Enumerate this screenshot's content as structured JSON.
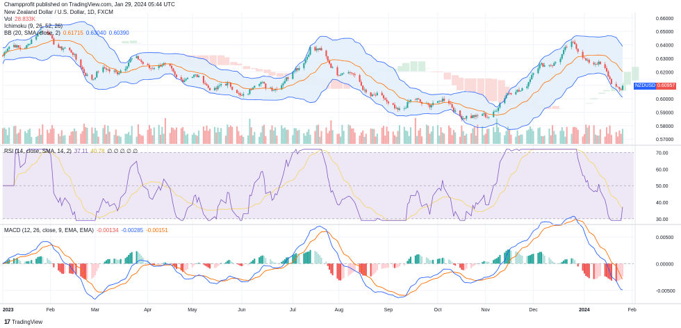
{
  "publisher": "Champprofit published on TradingView.com, Jan 29, 2024 05:44 UTC",
  "logo_text": "TradingView",
  "logo_icon": "tradingview-logo-icon",
  "colors": {
    "up": "#26a69a",
    "down": "#ef5350",
    "bb": "#2962ff",
    "bb_fill": "#e3f0fb",
    "basis": "#ff6d00",
    "ichi_up": "#d8eee0",
    "ichi_down": "#fbdada",
    "rsi": "#7e57c2",
    "rsi_ma": "#f5d76e",
    "rsi_band": "#ede7f6",
    "macd": "#2962ff",
    "signal": "#ff6d00"
  },
  "main_pane": {
    "title": "New Zealand Dollar / U.S. Dollar, 1D, FXCM",
    "vol_label": "Vol",
    "vol_value": "28.833K",
    "ichimoku_label": "Ichimoku (9, 26, 52, 26)",
    "bb_label": "BB (20, SMA, close, 2)",
    "bb_basis": "0.61715",
    "bb_upper": "0.63040",
    "bb_lower": "0.60390",
    "symbol_tag": "NZDUSD",
    "last_price": "0.60957"
  },
  "rsi_pane": {
    "label": "RSI (14, close, SMA, 14, 2)",
    "rsi_value": "37.11",
    "rsi_ma_value": "40.78",
    "extra": "∅ ∅ ∅ ∅ ∅"
  },
  "macd_pane": {
    "label": "MACD (12, 26, close, 9, EMA, EMA)",
    "hist_value": "-0.00134",
    "macd_value": "-0.00285",
    "signal_value": "-0.00151"
  },
  "chart_data": [
    {
      "type": "candlestick",
      "title": "New Zealand Dollar / U.S. Dollar, 1D, FXCM",
      "x_tick_labels": [
        "2023",
        "Feb",
        "Mar",
        "Apr",
        "May",
        "Jun",
        "Jul",
        "Aug",
        "Sep",
        "Oct",
        "Nov",
        "Dec",
        "2024",
        "Feb"
      ],
      "y_ticks": [
        "0.66000",
        "0.65000",
        "0.64000",
        "0.63000",
        "0.62000",
        "0.61000",
        "0.60000",
        "0.59000",
        "0.58000",
        "0.57000"
      ],
      "ylim": [
        0.566,
        0.664
      ],
      "monthly_close_approx": [
        {
          "x": "2023-01-02",
          "y": 0.632
        },
        {
          "x": "2023-01-31",
          "y": 0.648
        },
        {
          "x": "2023-02-28",
          "y": 0.618
        },
        {
          "x": "2023-03-31",
          "y": 0.626
        },
        {
          "x": "2023-04-28",
          "y": 0.618
        },
        {
          "x": "2023-05-31",
          "y": 0.603
        },
        {
          "x": "2023-06-30",
          "y": 0.614
        },
        {
          "x": "2023-07-14",
          "y": 0.64
        },
        {
          "x": "2023-07-31",
          "y": 0.621
        },
        {
          "x": "2023-08-31",
          "y": 0.596
        },
        {
          "x": "2023-09-29",
          "y": 0.599
        },
        {
          "x": "2023-10-26",
          "y": 0.582
        },
        {
          "x": "2023-11-30",
          "y": 0.618
        },
        {
          "x": "2023-12-27",
          "y": 0.637
        },
        {
          "x": "2024-01-26",
          "y": 0.61
        }
      ],
      "last_close": 0.60957
    },
    {
      "type": "line",
      "title": "RSI (14, close, SMA, 14, 2)",
      "y_ticks": [
        "70.00",
        "60.00",
        "50.00",
        "40.00",
        "30.00"
      ],
      "ylim": [
        27,
        74
      ],
      "bands": [
        30,
        70
      ],
      "series": [
        {
          "name": "RSI",
          "last": 37.11
        },
        {
          "name": "RSI-based MA",
          "last": 40.78
        }
      ]
    },
    {
      "type": "line+bar",
      "title": "MACD (12, 26, close, 9, EMA, EMA)",
      "y_ticks": [
        "0.00500",
        "0.00000",
        "-0.00500"
      ],
      "ylim": [
        -0.0075,
        0.0072
      ],
      "series": [
        {
          "name": "Histogram",
          "last": -0.00134
        },
        {
          "name": "MACD",
          "last": -0.00285
        },
        {
          "name": "Signal",
          "last": -0.00151
        }
      ]
    }
  ]
}
